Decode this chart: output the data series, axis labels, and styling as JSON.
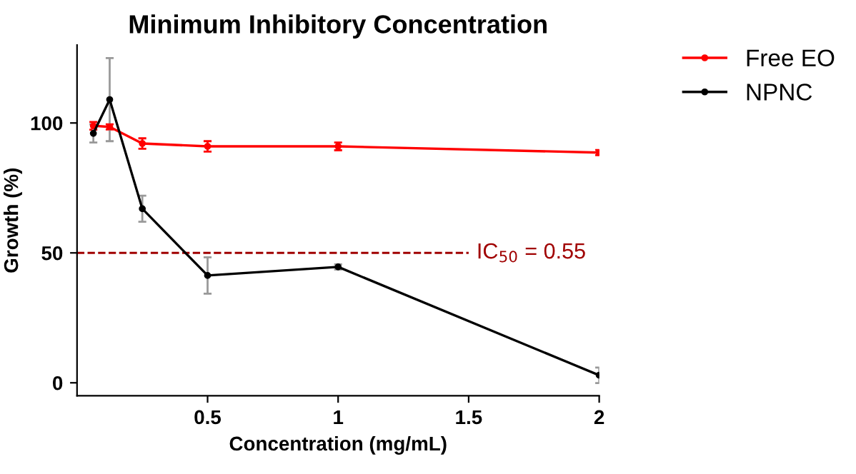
{
  "chart_data": {
    "type": "line",
    "title": "Minimum Inhibitory Concentration",
    "xlabel": "Concentration (mg/mL)",
    "ylabel": "Growth (%)",
    "xlim": [
      0,
      2
    ],
    "ylim": [
      -5,
      130
    ],
    "xticks": [
      0.5,
      1,
      1.5,
      2
    ],
    "yticks": [
      0,
      50,
      100
    ],
    "series": [
      {
        "name": "Free EO",
        "color": "#ff0000",
        "x": [
          0.0625,
          0.125,
          0.25,
          0.5,
          1,
          2
        ],
        "values": [
          98.9,
          98.5,
          92.1,
          91,
          91,
          88.6
        ],
        "errors": [
          1.5,
          1,
          2,
          2,
          1.5,
          1
        ]
      },
      {
        "name": "NPNC",
        "color": "#000000",
        "x": [
          0.0625,
          0.125,
          0.25,
          0.5,
          1,
          2
        ],
        "values": [
          96,
          109,
          67,
          41.3,
          44.6,
          2.9
        ],
        "errors": [
          3.5,
          16,
          5,
          7,
          1,
          3
        ]
      }
    ],
    "ref_lines": [
      {
        "axis": "y",
        "value": 50,
        "label": "IC$_{50}$ = 0.55",
        "color": "#a00000",
        "line_style": "dashed"
      }
    ],
    "marker": "circle",
    "line_style": "solid",
    "grid": false,
    "legend": "top right"
  }
}
